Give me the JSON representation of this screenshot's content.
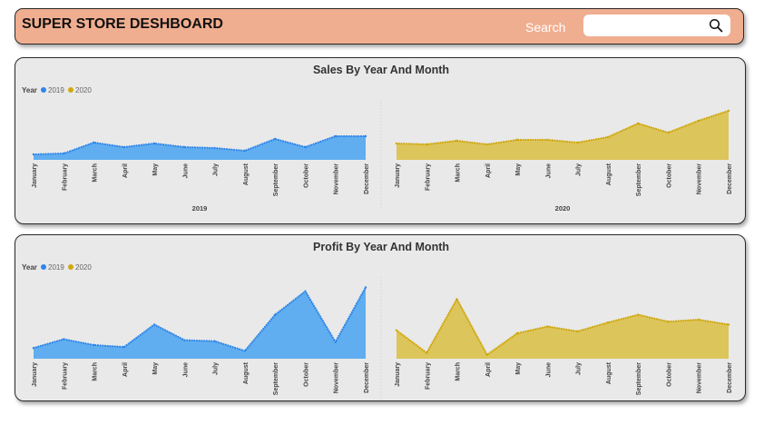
{
  "header": {
    "title": "SUPER STORE DESHBOARD",
    "search_label": "Search",
    "search_value": "",
    "search_icon": "search-icon",
    "background": "#f0ae90"
  },
  "colors": {
    "2019": "#60aef0",
    "2020": "#dcc55b",
    "line2019": "#2f86e8",
    "line2020": "#cfa80e"
  },
  "chart_data": [
    {
      "type": "area",
      "title": "Sales By Year And Month",
      "legend_title": "Year",
      "legend_position": "top-left",
      "months": [
        "January",
        "February",
        "March",
        "April",
        "May",
        "June",
        "July",
        "August",
        "September",
        "October",
        "November",
        "December"
      ],
      "series": [
        {
          "name": "2019",
          "group_label": "2019",
          "values": [
            0.6,
            0.7,
            1.9,
            1.4,
            1.8,
            1.4,
            1.3,
            1.0,
            2.3,
            1.4,
            2.6,
            2.6
          ]
        },
        {
          "name": "2020",
          "group_label": "2020",
          "values": [
            1.8,
            1.7,
            2.1,
            1.7,
            2.2,
            2.2,
            1.9,
            2.5,
            4.0,
            3.0,
            4.3,
            5.4
          ]
        }
      ],
      "ylim": [
        0,
        6
      ],
      "grid": false
    },
    {
      "type": "area",
      "title": "Profit By Year And Month",
      "legend_title": "Year",
      "legend_position": "top-left",
      "months": [
        "January",
        "February",
        "March",
        "April",
        "May",
        "June",
        "July",
        "August",
        "September",
        "October",
        "November",
        "December"
      ],
      "series": [
        {
          "name": "2019",
          "group_label": "2019",
          "values": [
            1.1,
            2.0,
            1.4,
            1.2,
            3.5,
            1.9,
            1.8,
            0.8,
            4.5,
            6.9,
            1.7,
            7.3
          ]
        },
        {
          "name": "2020",
          "group_label": "2020",
          "values": [
            2.9,
            0.6,
            6.1,
            0.4,
            2.6,
            3.3,
            2.8,
            3.7,
            4.5,
            3.8,
            4.0,
            3.5
          ]
        }
      ],
      "ylim": [
        0,
        8
      ],
      "grid": false
    }
  ]
}
